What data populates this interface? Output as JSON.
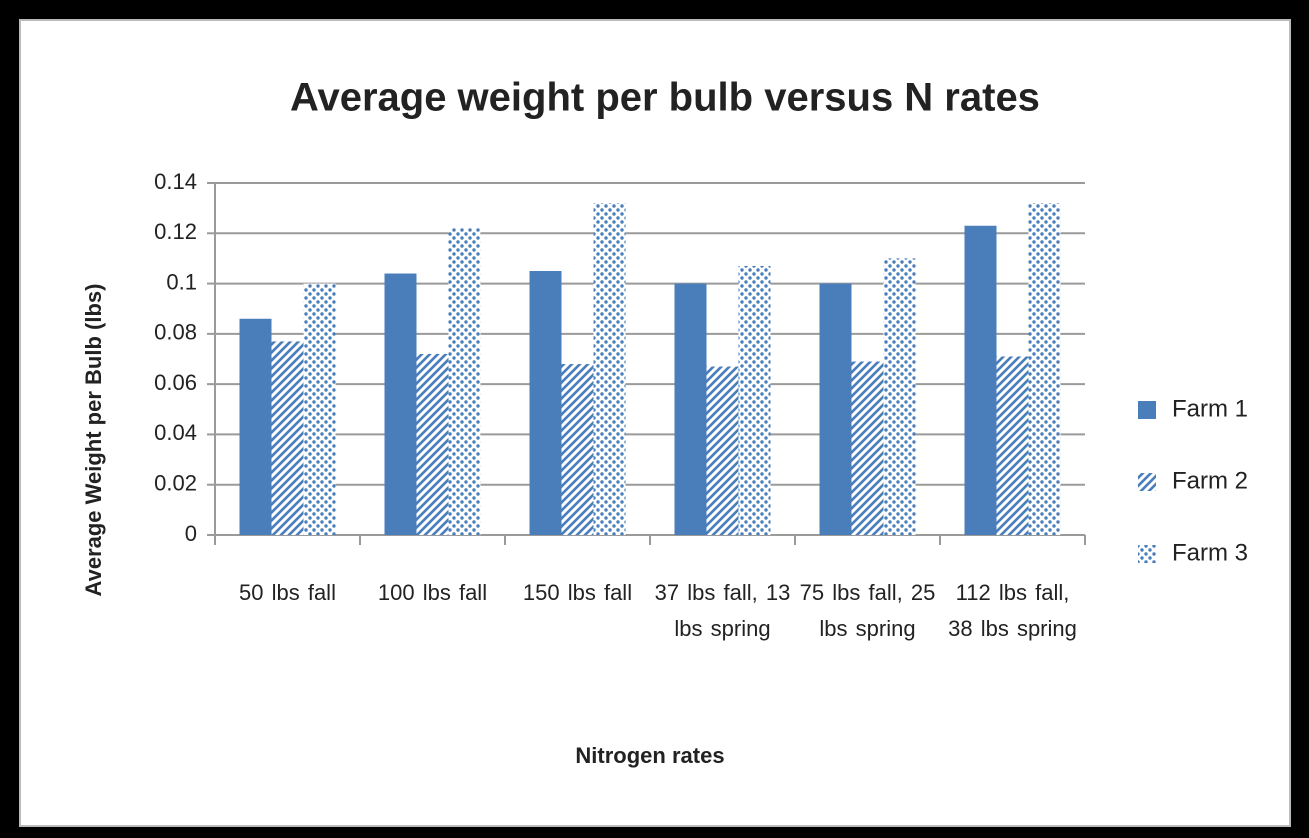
{
  "chart_data": {
    "type": "bar",
    "title": "Average weight per bulb versus N rates",
    "x_label": "Nitrogen rates",
    "y_label": "Average Weight per Bulb (lbs)",
    "categories": [
      "50 lbs fall",
      "100 lbs fall",
      "150 lbs fall",
      "37 lbs fall, 13 lbs spring",
      "75 lbs fall, 25 lbs spring",
      "112 lbs fall, 38 lbs spring"
    ],
    "series": [
      {
        "name": "Farm 1",
        "color": "#4a7ebb",
        "pattern": "solid",
        "values": [
          0.086,
          0.104,
          0.105,
          0.1,
          0.1,
          0.123
        ]
      },
      {
        "name": "Farm 2",
        "color": "#4a7ebb",
        "pattern": "hatch",
        "values": [
          0.077,
          0.072,
          0.068,
          0.067,
          0.069,
          0.071
        ]
      },
      {
        "name": "Farm 3",
        "color": "#4a7ebb",
        "pattern": "dots",
        "values": [
          0.1,
          0.122,
          0.132,
          0.107,
          0.11,
          0.132
        ]
      }
    ],
    "ylim": [
      0,
      0.14
    ],
    "yticks": [
      0,
      0.02,
      0.04,
      0.06,
      0.08,
      0.1,
      0.12,
      0.14
    ],
    "grid": true,
    "legend": "right"
  }
}
